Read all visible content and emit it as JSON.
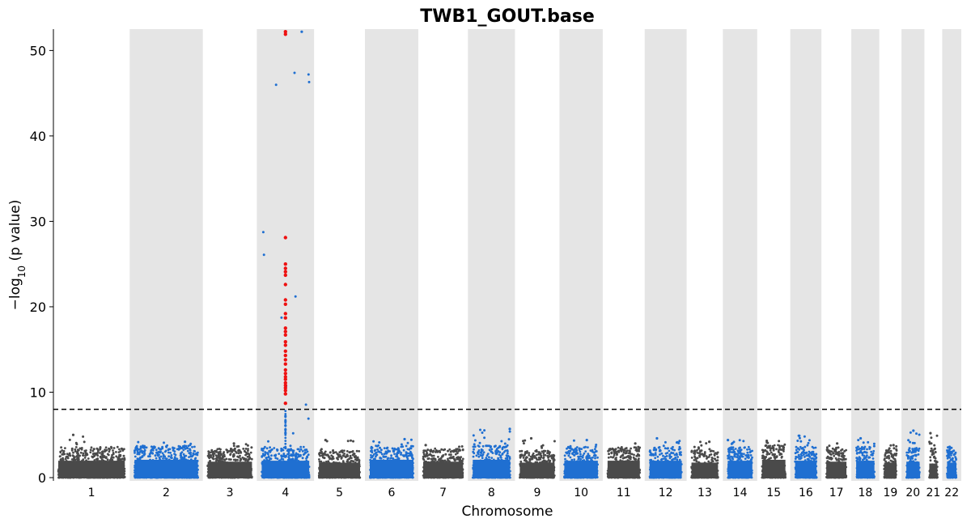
{
  "chart_data": {
    "type": "scatter",
    "subtype": "manhattan",
    "title": "TWB1_GOUT.base",
    "xlabel": "Chromosome",
    "ylabel_prefix": "−log",
    "ylabel_sub": "10",
    "ylabel_suffix": " (p value)",
    "ylim": [
      0,
      52.5
    ],
    "yticks": [
      0,
      10,
      20,
      30,
      40,
      50
    ],
    "threshold": 8.0,
    "threshold_style": "dashed",
    "colors": {
      "odd": "#4a4a4a",
      "even": "#1f6fd1",
      "significant": "#ee1111",
      "band": "#e5e5e5",
      "threshold": "#000000"
    },
    "chromosomes": [
      {
        "label": "1",
        "x_range": [
          0,
          12.0
        ],
        "peak": 5.0,
        "top_hits": [],
        "base_max": 3.6
      },
      {
        "label": "2",
        "x_range": [
          12.0,
          23.5
        ],
        "peak": 4.2,
        "top_hits": [],
        "base_max": 3.8
      },
      {
        "label": "3",
        "x_range": [
          23.5,
          32.0
        ],
        "peak": 4.0,
        "top_hits": [],
        "base_max": 3.4
      },
      {
        "label": "4",
        "x_range": [
          32.0,
          41.0
        ],
        "peak": 52.2,
        "top_hits": [
          52.2,
          51.9,
          28.1,
          25.0,
          24.5,
          24.1,
          23.7,
          22.6,
          20.8,
          20.3,
          19.2,
          18.7,
          17.5,
          17.1,
          16.7,
          15.9,
          15.5,
          14.8,
          14.3,
          13.8,
          13.3,
          12.6,
          12.2,
          11.8,
          11.5,
          11.1,
          10.8,
          10.5,
          10.2,
          9.8,
          8.7
        ],
        "sub_hits": [
          7.2,
          6.6,
          6.1,
          5.6,
          5.2
        ],
        "base_max": 3.6
      },
      {
        "label": "5",
        "x_range": [
          41.0,
          49.0
        ],
        "peak": 4.4,
        "top_hits": [],
        "base_max": 3.2
      },
      {
        "label": "6",
        "x_range": [
          49.0,
          57.4
        ],
        "peak": 4.5,
        "top_hits": [],
        "base_max": 3.8
      },
      {
        "label": "7",
        "x_range": [
          57.4,
          65.2
        ],
        "peak": 3.8,
        "top_hits": [],
        "base_max": 3.4
      },
      {
        "label": "8",
        "x_range": [
          65.2,
          72.6
        ],
        "peak": 5.7,
        "top_hits": [],
        "base_max": 3.8
      },
      {
        "label": "9",
        "x_range": [
          72.6,
          79.6
        ],
        "peak": 4.6,
        "top_hits": [],
        "base_max": 3.2
      },
      {
        "label": "10",
        "x_range": [
          79.6,
          86.4
        ],
        "peak": 4.4,
        "top_hits": [],
        "base_max": 3.6
      },
      {
        "label": "11",
        "x_range": [
          86.4,
          93.0
        ],
        "peak": 4.0,
        "top_hits": [],
        "base_max": 3.6
      },
      {
        "label": "12",
        "x_range": [
          93.0,
          99.6
        ],
        "peak": 4.6,
        "top_hits": [],
        "base_max": 3.6
      },
      {
        "label": "13",
        "x_range": [
          99.6,
          105.3
        ],
        "peak": 4.2,
        "top_hits": [],
        "base_max": 3.2
      },
      {
        "label": "14",
        "x_range": [
          105.3,
          110.7
        ],
        "peak": 4.4,
        "top_hits": [],
        "base_max": 3.6
      },
      {
        "label": "15",
        "x_range": [
          110.7,
          115.9
        ],
        "peak": 4.3,
        "top_hits": [],
        "base_max": 3.8
      },
      {
        "label": "16",
        "x_range": [
          115.9,
          120.8
        ],
        "peak": 4.9,
        "top_hits": [],
        "base_max": 3.6
      },
      {
        "label": "17",
        "x_range": [
          120.8,
          125.5
        ],
        "peak": 4.0,
        "top_hits": [],
        "base_max": 3.4
      },
      {
        "label": "18",
        "x_range": [
          125.5,
          129.9
        ],
        "peak": 4.6,
        "top_hits": [],
        "base_max": 3.6
      },
      {
        "label": "19",
        "x_range": [
          129.9,
          133.4
        ],
        "peak": 3.8,
        "top_hits": [],
        "base_max": 3.2
      },
      {
        "label": "20",
        "x_range": [
          133.4,
          137.0
        ],
        "peak": 5.5,
        "top_hits": [],
        "base_max": 3.4
      },
      {
        "label": "21",
        "x_range": [
          137.0,
          139.8
        ],
        "peak": 5.2,
        "top_hits": [],
        "base_max": 3.0
      },
      {
        "label": "22",
        "x_range": [
          139.8,
          142.8
        ],
        "peak": 3.6,
        "top_hits": [],
        "base_max": 3.2
      }
    ],
    "shaded_chromosomes": [
      "2",
      "4",
      "6",
      "8",
      "10",
      "12",
      "14",
      "16",
      "18",
      "20",
      "22"
    ],
    "grid": false,
    "legend": "none"
  }
}
